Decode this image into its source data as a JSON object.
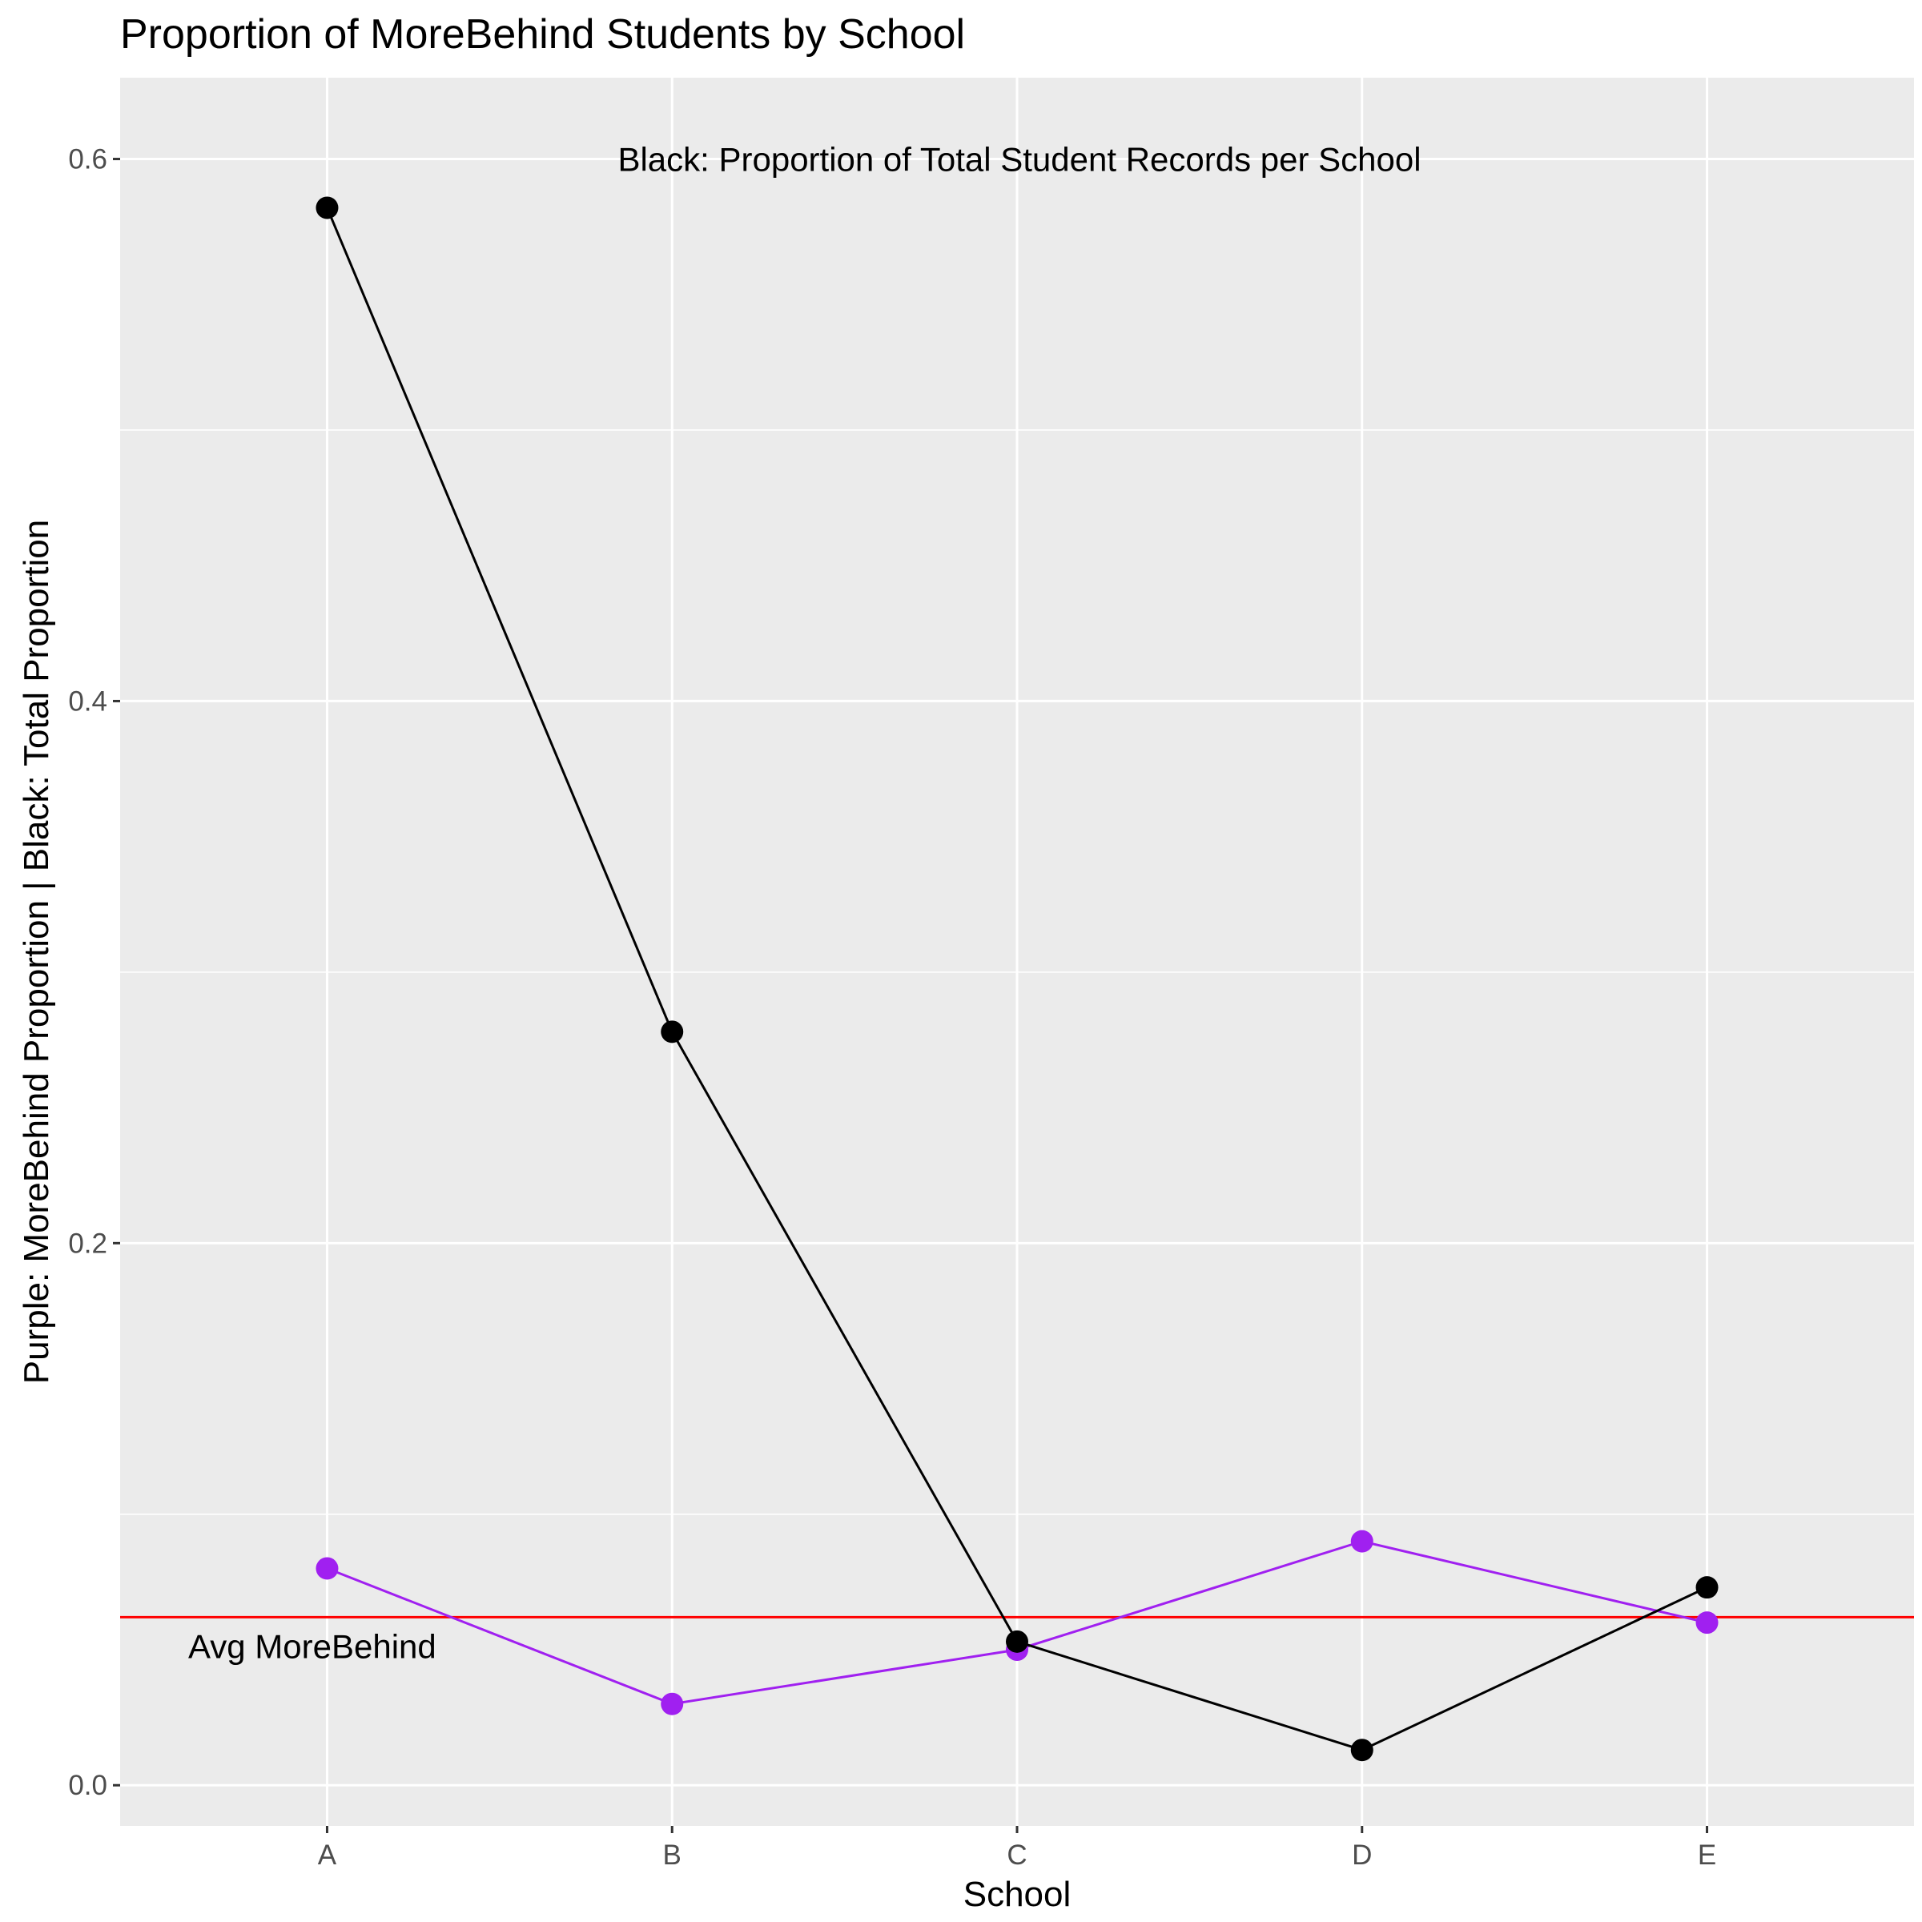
{
  "chart_data": {
    "type": "line",
    "title": "Proportion of MoreBehind Students by School",
    "xlabel": "School",
    "ylabel": "Purple: MoreBehind Proportion | Black: Total Proportion",
    "categories": [
      "A",
      "B",
      "C",
      "D",
      "E"
    ],
    "ylim": [
      -0.015,
      0.63
    ],
    "yticks": [
      0.0,
      0.2,
      0.4,
      0.6
    ],
    "yticklabels": [
      "0.0",
      "0.2",
      "0.4",
      "0.6"
    ],
    "series": [
      {
        "color": "#a020f0",
        "values": [
          0.08,
          0.03,
          0.05,
          0.09,
          0.06
        ]
      },
      {
        "color": "#000000",
        "values": [
          0.582,
          0.278,
          0.053,
          0.013,
          0.073
        ]
      }
    ],
    "reference_line": {
      "label": "Avg MoreBehind",
      "value": 0.062,
      "color": "#ff0000"
    },
    "annotation": "Black: Proportion of Total Student Records per School",
    "grid": true
  }
}
